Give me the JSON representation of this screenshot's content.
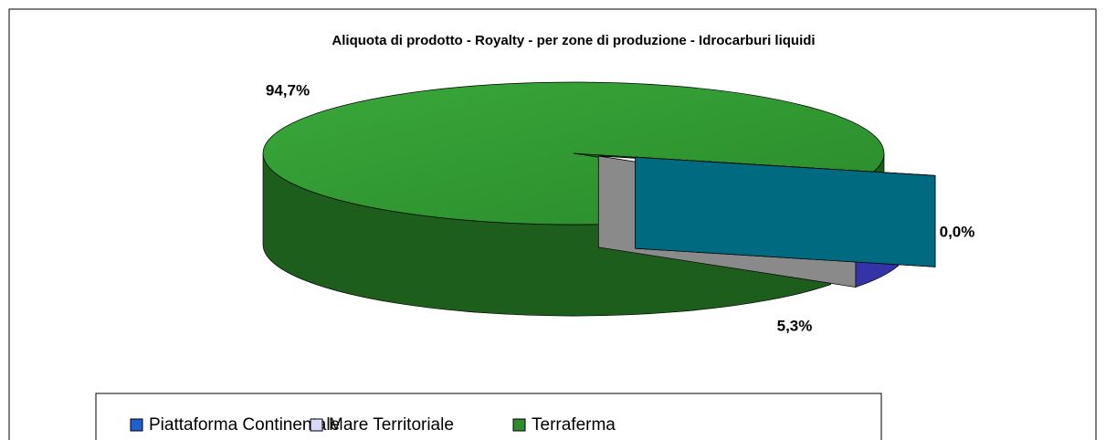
{
  "chart_data": {
    "type": "pie3d",
    "title": "Aliquota di prodotto - Royalty -  per zone di produzione - Idrocarburi liquidi",
    "categories": [
      "Piattaforma Continentale",
      "Mare Territoriale",
      "Terraferma"
    ],
    "values": [
      0.0,
      5.3,
      94.7
    ],
    "value_labels": [
      "0,0%",
      "5,3%",
      "94,7%"
    ],
    "colors": [
      "#1f5fcf",
      "#d8d8ff",
      "#2e8b2e"
    ]
  }
}
